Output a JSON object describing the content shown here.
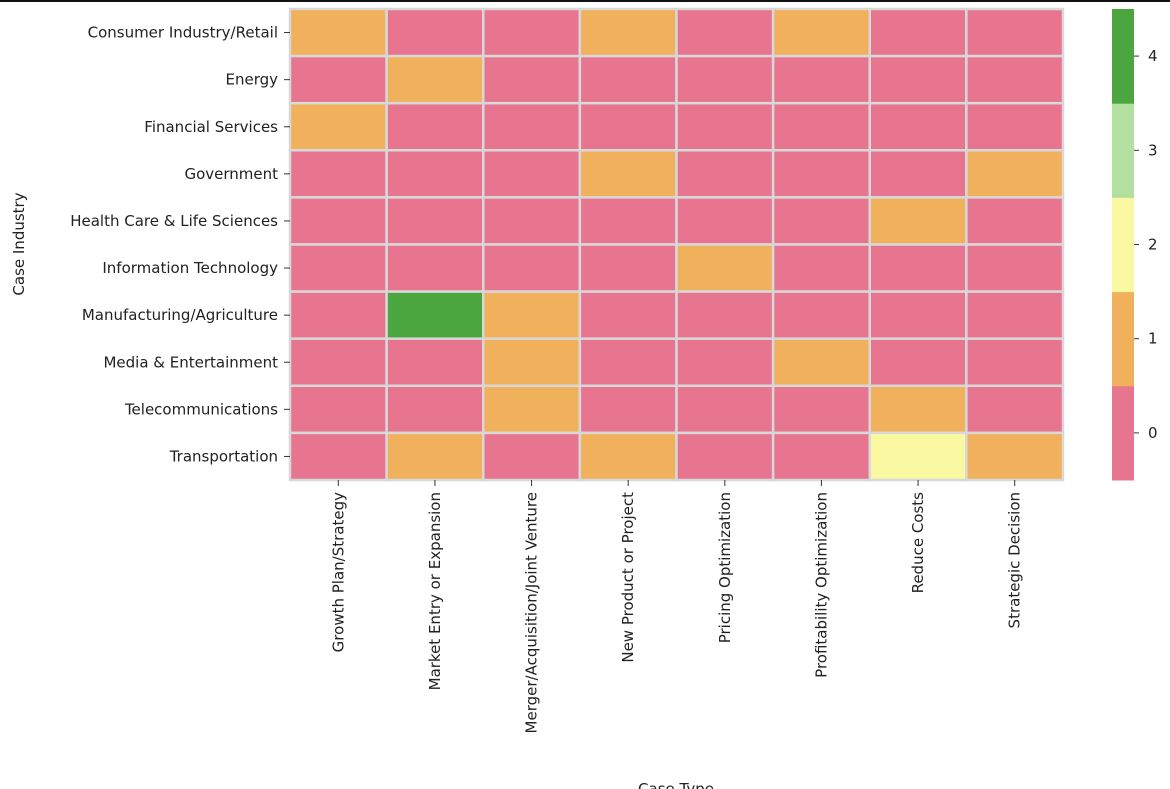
{
  "chart_data": {
    "type": "heatmap",
    "title": "",
    "xlabel": "Case Type",
    "ylabel": "Case Industry",
    "x_categories": [
      "Growth Plan/Strategy",
      "Market Entry or Expansion",
      "Merger/Acquisition/Joint Venture",
      "New Product or Project",
      "Pricing Optimization",
      "Profitability Optimization",
      "Reduce Costs",
      "Strategic Decision"
    ],
    "y_categories": [
      "Consumer Industry/Retail",
      "Energy",
      "Financial Services",
      "Government",
      "Health Care & Life Sciences",
      "Information Technology",
      "Manufacturing/Agriculture",
      "Media & Entertainment",
      "Telecommunications",
      "Transportation"
    ],
    "values": [
      [
        1,
        0,
        0,
        1,
        0,
        1,
        0,
        0
      ],
      [
        0,
        1,
        0,
        0,
        0,
        0,
        0,
        0
      ],
      [
        1,
        0,
        0,
        0,
        0,
        0,
        0,
        0
      ],
      [
        0,
        0,
        0,
        1,
        0,
        0,
        0,
        1
      ],
      [
        0,
        0,
        0,
        0,
        0,
        0,
        1,
        0
      ],
      [
        0,
        0,
        0,
        0,
        1,
        0,
        0,
        0
      ],
      [
        0,
        4,
        1,
        0,
        0,
        0,
        0,
        0
      ],
      [
        0,
        0,
        1,
        0,
        0,
        1,
        0,
        0
      ],
      [
        0,
        0,
        1,
        0,
        0,
        0,
        1,
        0
      ],
      [
        0,
        1,
        0,
        1,
        0,
        0,
        2,
        1
      ]
    ],
    "colorbar": {
      "vmin": -0.5,
      "vmax": 4.5,
      "ticks": [
        0,
        1,
        2,
        3,
        4
      ],
      "colors": [
        "#E87590",
        "#F0B05C",
        "#FAF8A0",
        "#B3E0A0",
        "#4CA640"
      ]
    },
    "grid_line_color": "#D8D8D8",
    "legend": "colorbar-right"
  }
}
